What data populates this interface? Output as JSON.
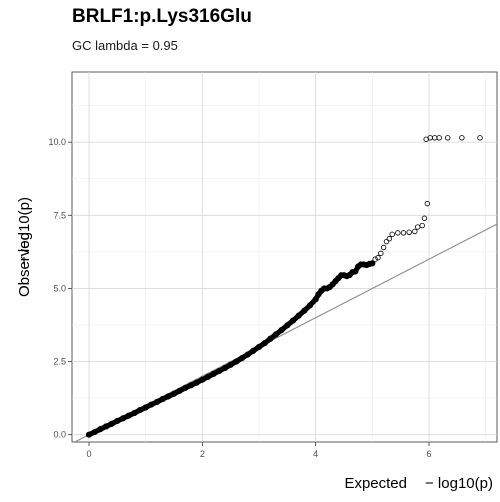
{
  "chart_data": {
    "type": "scatter",
    "title": "BRLF1:p.Lys316Glu",
    "subtitle": "GC lambda = 0.95",
    "xlabel": "Expected",
    "ylabel": "Observed",
    "axis_suffix": "− log10(p)",
    "xlim": [
      -0.3,
      7.2
    ],
    "ylim": [
      -0.25,
      12.4
    ],
    "x_ticks": [
      0,
      2,
      4,
      6
    ],
    "y_ticks": [
      0.0,
      2.5,
      5.0,
      7.5,
      10.0
    ],
    "x_tick_labels": [
      "0",
      "2",
      "4",
      "6"
    ],
    "y_tick_labels": [
      "0.0",
      "2.5",
      "5.0",
      "7.5",
      "10.0"
    ],
    "grid": true,
    "reference_line": {
      "intercept": 0,
      "slope": 1
    },
    "series": [
      {
        "points": [
          [
            0.0,
            0.0
          ],
          [
            0.1,
            0.09
          ],
          [
            0.2,
            0.19
          ],
          [
            0.3,
            0.28
          ],
          [
            0.4,
            0.37
          ],
          [
            0.5,
            0.47
          ],
          [
            0.6,
            0.56
          ],
          [
            0.7,
            0.65
          ],
          [
            0.8,
            0.74
          ],
          [
            0.9,
            0.84
          ],
          [
            1.0,
            0.93
          ],
          [
            1.1,
            1.03
          ],
          [
            1.2,
            1.12
          ],
          [
            1.3,
            1.22
          ],
          [
            1.4,
            1.31
          ],
          [
            1.5,
            1.4
          ],
          [
            1.6,
            1.5
          ],
          [
            1.7,
            1.6
          ],
          [
            1.8,
            1.69
          ],
          [
            1.9,
            1.78
          ],
          [
            2.0,
            1.88
          ],
          [
            2.1,
            1.98
          ],
          [
            2.2,
            2.08
          ],
          [
            2.3,
            2.18
          ],
          [
            2.4,
            2.28
          ],
          [
            2.5,
            2.39
          ],
          [
            2.6,
            2.5
          ],
          [
            2.7,
            2.62
          ],
          [
            2.8,
            2.74
          ],
          [
            2.9,
            2.87
          ],
          [
            3.0,
            3.0
          ],
          [
            3.1,
            3.13
          ],
          [
            3.2,
            3.28
          ],
          [
            3.3,
            3.43
          ],
          [
            3.4,
            3.58
          ],
          [
            3.5,
            3.74
          ],
          [
            3.6,
            3.9
          ],
          [
            3.7,
            4.07
          ],
          [
            3.8,
            4.24
          ],
          [
            3.9,
            4.42
          ],
          [
            4.0,
            4.63
          ],
          [
            4.05,
            4.8
          ],
          [
            4.1,
            4.92
          ],
          [
            4.15,
            5.0
          ],
          [
            4.2,
            5.0
          ],
          [
            4.25,
            5.05
          ],
          [
            4.3,
            5.14
          ],
          [
            4.35,
            5.25
          ],
          [
            4.4,
            5.35
          ],
          [
            4.45,
            5.45
          ],
          [
            4.5,
            5.45
          ],
          [
            4.55,
            5.42
          ],
          [
            4.6,
            5.46
          ],
          [
            4.65,
            5.56
          ],
          [
            4.7,
            5.58
          ],
          [
            4.75,
            5.75
          ],
          [
            4.8,
            5.82
          ],
          [
            4.85,
            5.82
          ],
          [
            4.9,
            5.8
          ],
          [
            4.95,
            5.84
          ],
          [
            5.0,
            5.86
          ],
          [
            5.05,
            6.0
          ],
          [
            5.1,
            6.05
          ],
          [
            5.15,
            6.2
          ],
          [
            5.2,
            6.4
          ],
          [
            5.25,
            6.6
          ],
          [
            5.3,
            6.7
          ],
          [
            5.35,
            6.85
          ],
          [
            5.45,
            6.9
          ],
          [
            5.55,
            6.9
          ],
          [
            5.65,
            6.92
          ],
          [
            5.75,
            6.95
          ],
          [
            5.8,
            7.1
          ],
          [
            5.88,
            7.15
          ],
          [
            5.92,
            7.4
          ],
          [
            5.97,
            7.9
          ],
          [
            5.95,
            10.1
          ],
          [
            6.02,
            10.15
          ],
          [
            6.1,
            10.15
          ],
          [
            6.18,
            10.15
          ],
          [
            6.33,
            10.15
          ],
          [
            6.58,
            10.15
          ],
          [
            6.9,
            10.15
          ]
        ]
      }
    ]
  }
}
